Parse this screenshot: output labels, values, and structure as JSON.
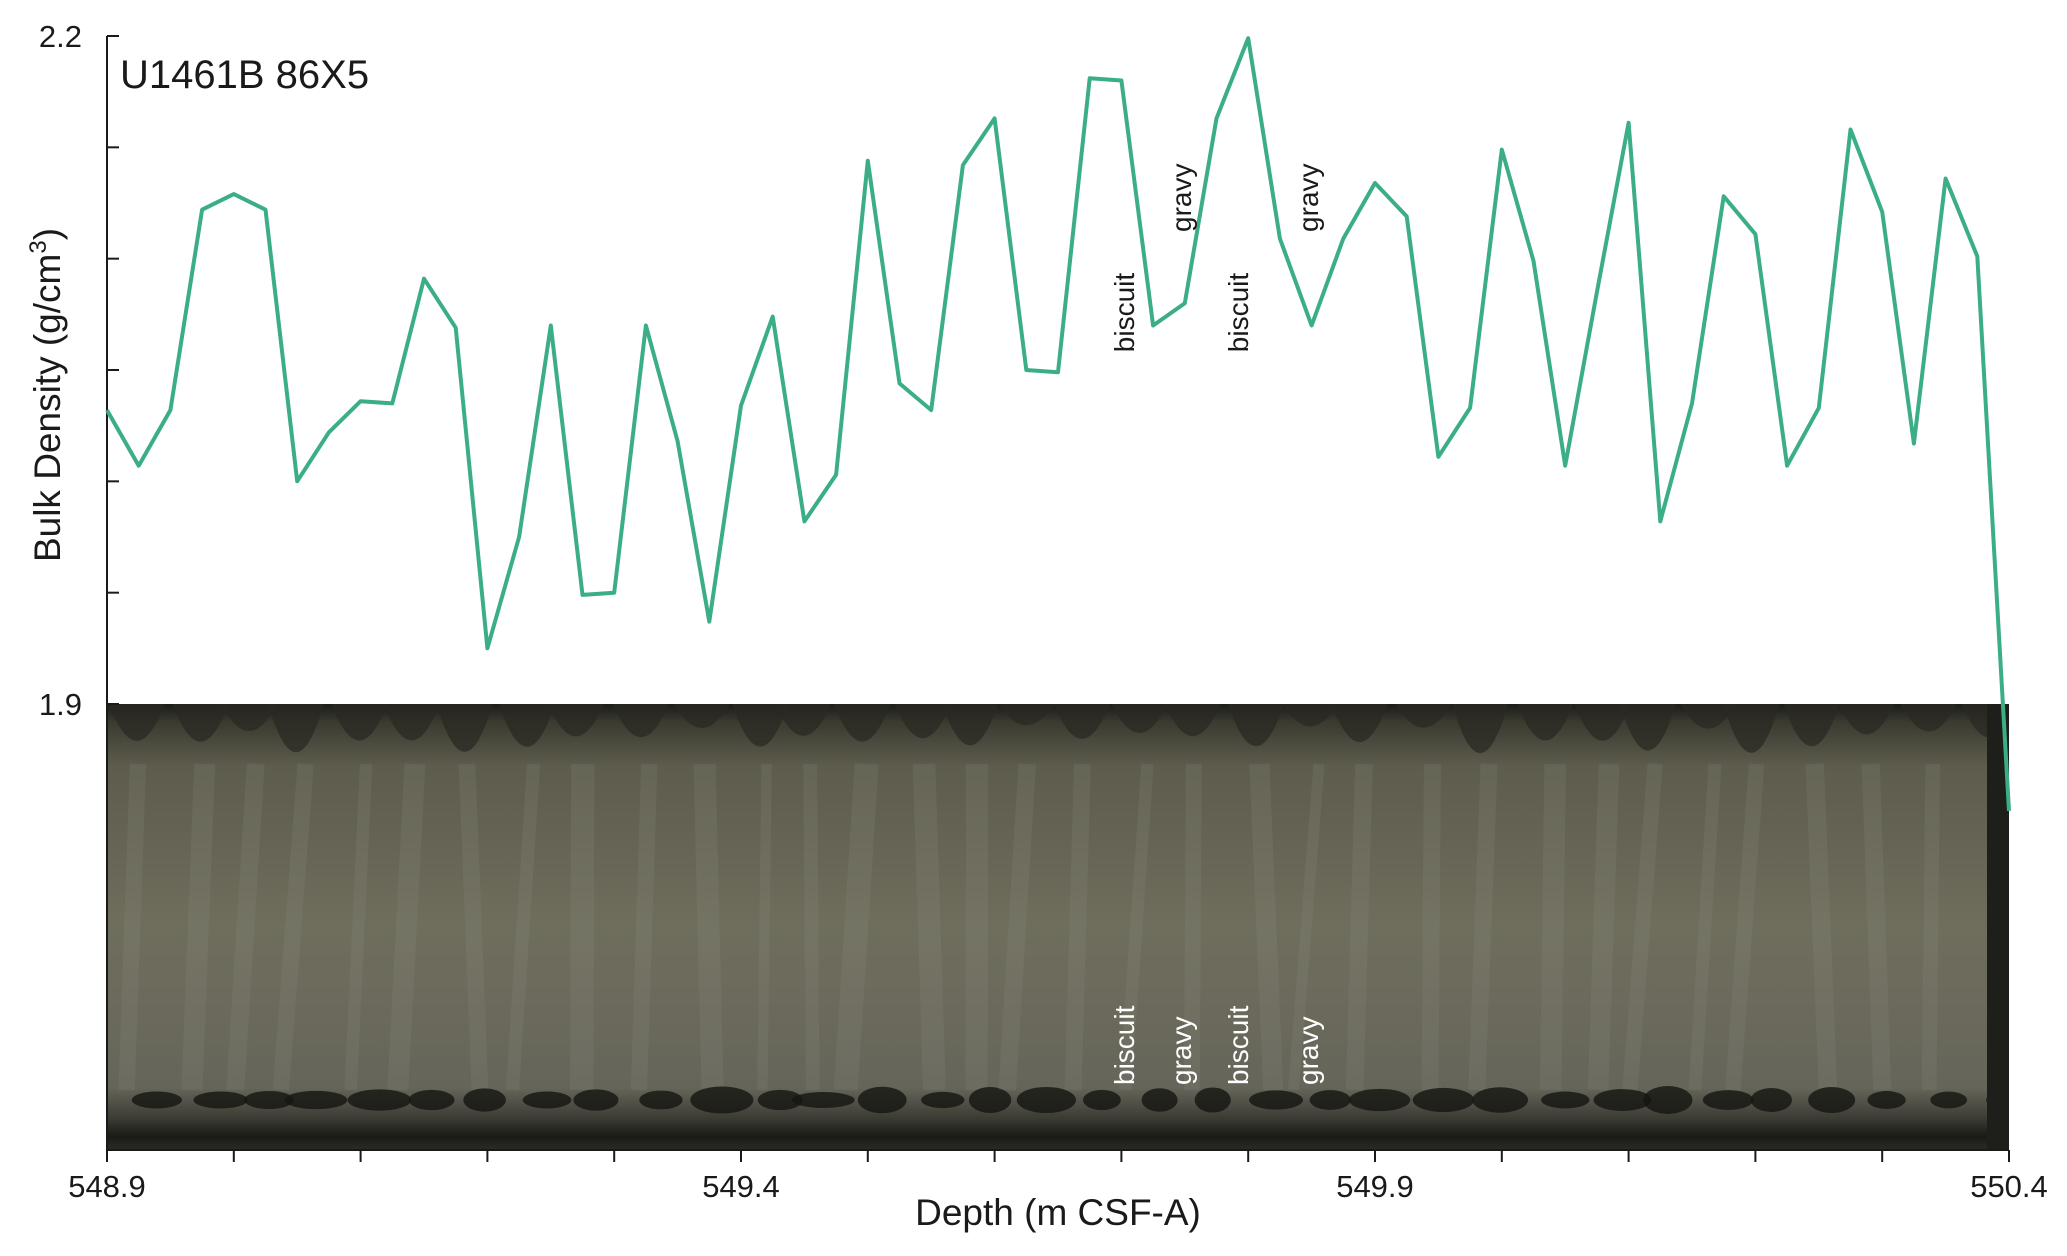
{
  "chart_data": {
    "type": "line",
    "title": "U1461B 86X5",
    "xlabel": "Depth (m CSF-A)",
    "ylabel": "Bulk Density (g/cm3)",
    "ylabel_main": "Bulk Density (g/cm",
    "ylabel_sup": "3",
    "ylabel_close": ")",
    "xlim": [
      548.9,
      550.4
    ],
    "ylim": [
      1.9,
      2.2
    ],
    "x_ticks_labeled": [
      "548.9",
      "549.4",
      "549.9",
      "550.4"
    ],
    "x_tick_values": [
      548.9,
      549.0,
      549.1,
      549.2,
      549.3,
      549.4,
      549.5,
      549.6,
      549.7,
      549.8,
      549.9,
      550.0,
      550.1,
      550.2,
      550.3,
      550.4
    ],
    "y_ticks_labeled": [
      "1.9",
      "2.2"
    ],
    "y_tick_values": [
      1.9,
      1.95,
      2.0,
      2.05,
      2.1,
      2.15,
      2.2
    ],
    "line_color": "#3cae85",
    "series": [
      {
        "name": "Bulk Density",
        "x": [
          548.9,
          548.925,
          548.95,
          548.975,
          549.0,
          549.025,
          549.05,
          549.075,
          549.1,
          549.125,
          549.15,
          549.175,
          549.2,
          549.225,
          549.25,
          549.275,
          549.3,
          549.325,
          549.35,
          549.375,
          549.4,
          549.425,
          549.45,
          549.475,
          549.5,
          549.525,
          549.55,
          549.575,
          549.6,
          549.625,
          549.65,
          549.675,
          549.7,
          549.725,
          549.75,
          549.775,
          549.8,
          549.825,
          549.85,
          549.875,
          549.9,
          549.925,
          549.95,
          549.975,
          550.0,
          550.025,
          550.05,
          550.075,
          550.1,
          550.125,
          550.15,
          550.175,
          550.2,
          550.225,
          550.25,
          550.275,
          550.3,
          550.325,
          550.35,
          550.375,
          550.4
        ],
        "values": [
          2.032,
          2.007,
          2.032,
          2.122,
          2.129,
          2.122,
          2.0,
          2.022,
          2.036,
          2.035,
          2.091,
          2.069,
          1.925,
          1.975,
          2.07,
          1.949,
          1.95,
          2.07,
          2.018,
          1.937,
          2.034,
          2.074,
          1.982,
          2.003,
          2.144,
          2.044,
          2.032,
          2.142,
          2.163,
          2.05,
          2.049,
          2.181,
          2.18,
          2.07,
          2.08,
          2.163,
          2.199,
          2.109,
          2.07,
          2.109,
          2.134,
          2.119,
          2.011,
          2.033,
          2.149,
          2.099,
          2.007,
          2.085,
          2.161,
          1.982,
          2.035,
          2.128,
          2.111,
          2.007,
          2.033,
          2.158,
          2.121,
          2.017,
          2.136,
          2.101,
          1.852
        ]
      }
    ],
    "annotations": [
      {
        "text": "biscuit",
        "x": 549.71,
        "y": 2.058,
        "panel": "plot"
      },
      {
        "text": "gravy",
        "x": 549.755,
        "y": 2.112,
        "panel": "plot"
      },
      {
        "text": "biscuit",
        "x": 549.8,
        "y": 2.058,
        "panel": "plot"
      },
      {
        "text": "gravy",
        "x": 549.855,
        "y": 2.112,
        "panel": "plot"
      },
      {
        "text": "biscuit",
        "x": 549.71,
        "panel": "core"
      },
      {
        "text": "gravy",
        "x": 549.755,
        "panel": "core"
      },
      {
        "text": "biscuit",
        "x": 549.8,
        "panel": "core"
      },
      {
        "text": "gravy",
        "x": 549.855,
        "panel": "core"
      }
    ],
    "core_image": "core photograph strip spanning 548.9–550.4 m",
    "core_colors": {
      "sediment": "#6b6a58",
      "dark": "#1a1a16",
      "light": "#8f8f84"
    }
  }
}
